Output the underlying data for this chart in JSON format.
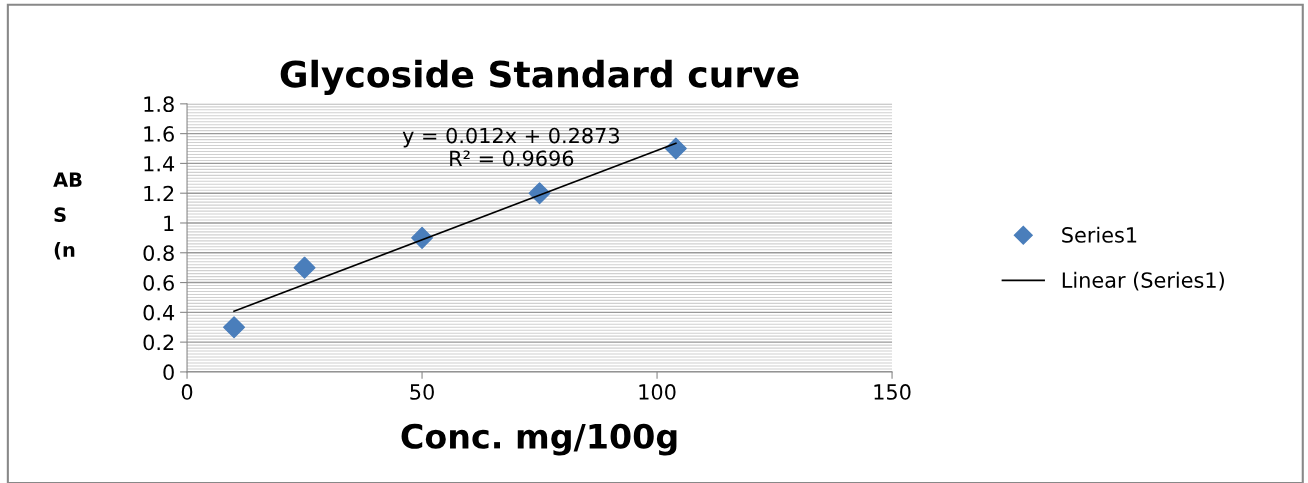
{
  "chart_data": {
    "type": "scatter",
    "title": "Glycoside Standard curve",
    "xlabel": "Conc. mg/100g",
    "ylabel": "AB\nS\n(n",
    "x": [
      10,
      25,
      50,
      75,
      104
    ],
    "series": [
      {
        "name": "Series1",
        "color": "#4a7ebb",
        "marker": "diamond",
        "values": [
          0.3,
          0.7,
          0.9,
          1.2,
          1.5
        ]
      },
      {
        "name": "Linear (Series1)",
        "type": "line",
        "color": "#000000",
        "x": [
          10,
          104
        ],
        "values": [
          0.407,
          1.535
        ]
      }
    ],
    "annotations": [
      "y = 0.012x + 0.2873",
      "R² = 0.9696"
    ],
    "xlim": [
      0,
      150
    ],
    "xticks": [
      0,
      50,
      100,
      150
    ],
    "ylim": [
      0,
      1.8
    ],
    "yticks": [
      0,
      0.2,
      0.4,
      0.6,
      0.8,
      1,
      1.2,
      1.4,
      1.6,
      1.8
    ],
    "grid": "y",
    "legend": "right"
  }
}
